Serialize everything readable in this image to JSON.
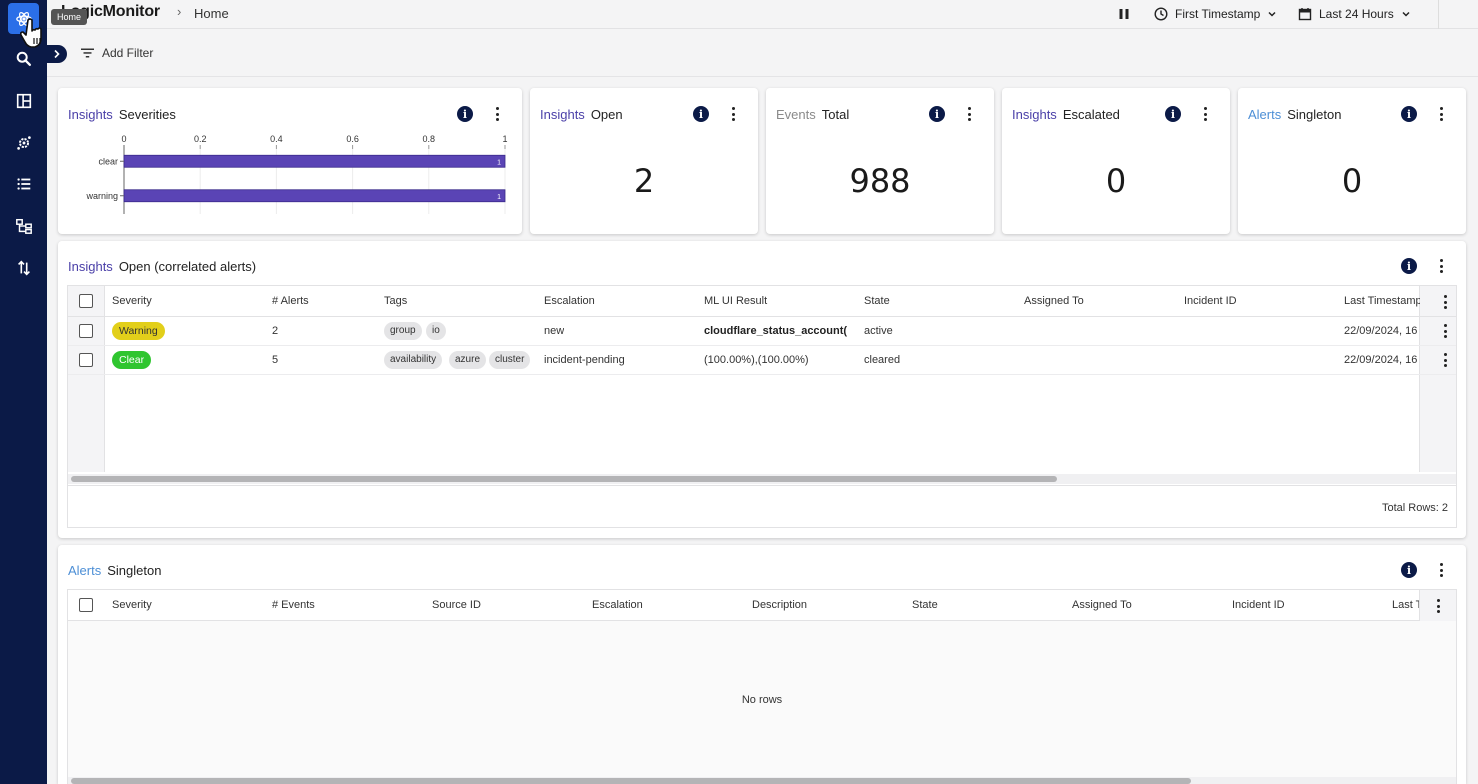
{
  "colors": {
    "sidebar": "#0b1a47",
    "accent": "#2b6fe8",
    "insights_kw": "#4a3fa8",
    "alerts_kw": "#4d8fd6",
    "bar": "#5a44b5",
    "warning": "#e2cf1a",
    "clear": "#2fc52f"
  },
  "sidebar": {
    "items": [
      {
        "icon": "atom-icon",
        "tooltip": "Home"
      },
      {
        "icon": "search-icon"
      },
      {
        "icon": "layout-icon"
      },
      {
        "icon": "gear-network-icon"
      },
      {
        "icon": "list-icon"
      },
      {
        "icon": "topology-icon"
      },
      {
        "icon": "sort-arrows-icon"
      }
    ]
  },
  "topbar": {
    "logo": "LogicMonitor",
    "breadcrumb": "Home",
    "timestamp_select": "First Timestamp",
    "range_select": "Last 24 Hours"
  },
  "filter": {
    "add_filter": "Add Filter"
  },
  "cards": {
    "severities": {
      "kw": "Insights",
      "title": "Severities"
    },
    "open": {
      "kw": "Insights",
      "title": "Open",
      "value": "2"
    },
    "events": {
      "kw": "Events",
      "title": "Total",
      "value": "988"
    },
    "escalated": {
      "kw": "Insights",
      "title": "Escalated",
      "value": "0"
    },
    "singleton": {
      "kw": "Alerts",
      "title": "Singleton",
      "value": "0"
    }
  },
  "chart_data": {
    "type": "bar",
    "orientation": "horizontal",
    "categories": [
      "clear",
      "warning"
    ],
    "values": [
      1,
      1
    ],
    "data_labels": [
      "1",
      "1"
    ],
    "xlim": [
      0,
      1
    ],
    "xticks": [
      "0",
      "0.2",
      "0.4",
      "0.6",
      "0.8",
      "1"
    ],
    "axis_position": "top",
    "grid": true
  },
  "insights_table": {
    "kw": "Insights",
    "title": "Open (correlated alerts)",
    "columns": [
      "Severity",
      "# Alerts",
      "Tags",
      "Escalation",
      "ML UI Result",
      "State",
      "Assigned To",
      "Incident ID",
      "Last Timestamp"
    ],
    "rows": [
      {
        "severity": "Warning",
        "alerts": "2",
        "tags": [
          "group",
          "io"
        ],
        "escalation": "new",
        "ml": "cloudflare_status_account(",
        "state": "active",
        "assigned": "",
        "incident": "",
        "last": "22/09/2024, 16"
      },
      {
        "severity": "Clear",
        "alerts": "5",
        "tags": [
          "availability",
          "azure",
          "cluster"
        ],
        "escalation": "incident-pending",
        "ml": "(100.00%),(100.00%)",
        "state": "cleared",
        "assigned": "",
        "incident": "",
        "last": "22/09/2024, 16"
      }
    ],
    "total_rows": "Total Rows: 2"
  },
  "singleton_table": {
    "kw": "Alerts",
    "title": "Singleton",
    "columns": [
      "Severity",
      "# Events",
      "Source ID",
      "Escalation",
      "Description",
      "State",
      "Assigned To",
      "Incident ID",
      "Last T"
    ],
    "empty": "No rows"
  }
}
